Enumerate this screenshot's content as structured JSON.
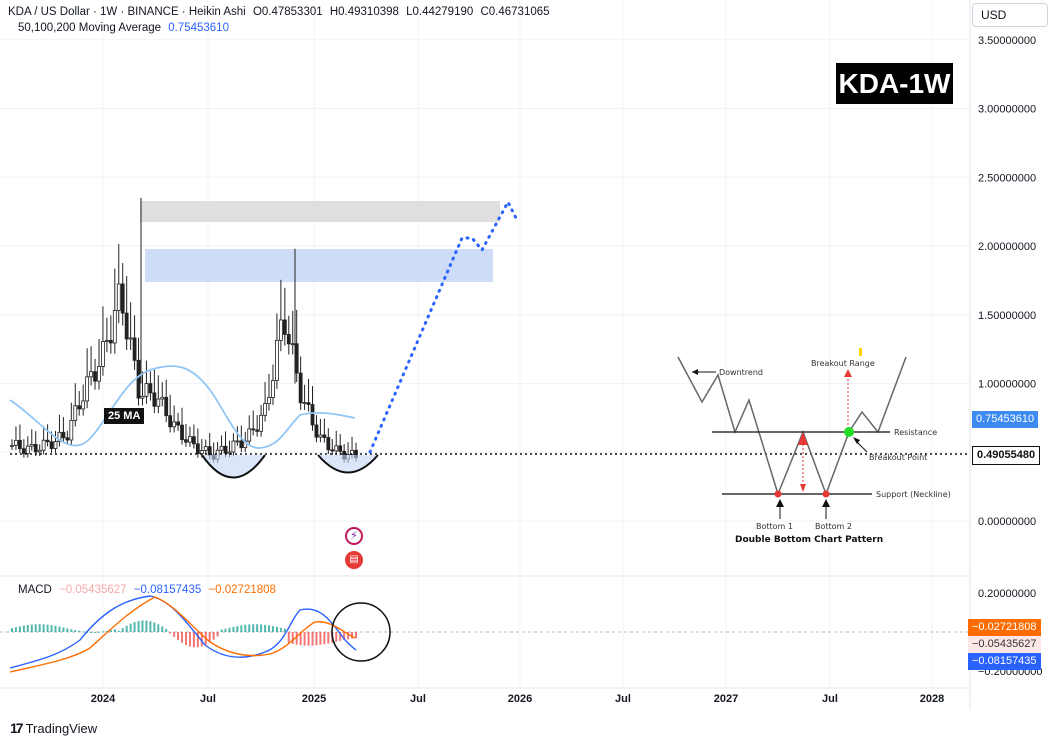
{
  "header": {
    "symbol": "KDA / US Dollar · 1W · BINANCE · Heikin Ashi",
    "open": "O0.47853301",
    "high": "H0.49310398",
    "low": "L0.44279190",
    "close": "C0.46731065",
    "ma_label": "50,100,200 Moving Average",
    "ma_value": "0.75453610"
  },
  "currency": "USD",
  "badge": "KDA-1W",
  "ma_tag": "25 MA",
  "macd": {
    "label": "MACD",
    "hist": "−0.05435627",
    "macd": "−0.08157435",
    "signal": "−0.02721808"
  },
  "price_axis": {
    "ticks": [
      "3.50000000",
      "3.00000000",
      "2.50000000",
      "2.00000000",
      "1.50000000",
      "1.00000000",
      "0.50000000",
      "0.00000000"
    ],
    "current_ma": "0.75453610",
    "current_price": "0.49055480"
  },
  "macd_axis": {
    "ticks": [
      "0.20000000",
      "−0.20000000"
    ],
    "signal_tag": "−0.02721808",
    "hist_tag": "−0.05435627",
    "macd_tag": "−0.08157435"
  },
  "time_axis": [
    "2024",
    "Jul",
    "2025",
    "Jul",
    "2026",
    "Jul",
    "2027",
    "Jul",
    "2028"
  ],
  "pattern": {
    "downtrend": "Downtrend",
    "breakout_range": "Breakout Range",
    "resistance": "Resistance",
    "breakout_point": "Breakout Point",
    "support": "Support (Neckline)",
    "bottom1": "Bottom 1",
    "bottom2": "Bottom 2",
    "title": "Double Bottom Chart Pattern"
  },
  "footer": {
    "brand": "TradingView",
    "logo": "17"
  },
  "colors": {
    "up": "#26a69a",
    "down": "#ef5350",
    "ma": "#90c6f5",
    "macd_line": "#2962ff",
    "signal_line": "#ff6d00",
    "hist_pos": "#26a69a",
    "hist_neg": "#ef5350",
    "zone_gray": "#d9d9d9",
    "zone_blue": "#c5d6f7"
  },
  "chart_data": {
    "type": "candlestick",
    "title": "KDA / US Dollar · 1W · BINANCE · Heikin Ashi",
    "ylim": [
      0,
      3.7
    ],
    "price_series": {
      "dates": [
        "2023-09",
        "2023-10",
        "2023-11",
        "2023-12",
        "2024-01",
        "2024-02",
        "2024-03",
        "2024-04",
        "2024-05",
        "2024-06",
        "2024-07",
        "2024-08",
        "2024-09",
        "2024-10",
        "2024-11",
        "2024-12",
        "2025-01",
        "2025-02",
        "2025-03",
        "2025-04"
      ],
      "close": [
        0.55,
        0.52,
        0.56,
        0.62,
        0.95,
        1.2,
        1.65,
        0.95,
        0.9,
        0.68,
        0.55,
        0.48,
        0.53,
        0.6,
        0.8,
        1.5,
        0.9,
        0.6,
        0.5,
        0.47
      ]
    },
    "ma_series": {
      "name": "25 MA",
      "dates": [
        "2023-09",
        "2023-11",
        "2024-01",
        "2024-03",
        "2024-05",
        "2024-07",
        "2024-09",
        "2024-11",
        "2025-01",
        "2025-03"
      ],
      "values": [
        0.88,
        0.6,
        0.52,
        0.95,
        1.1,
        0.92,
        0.6,
        0.58,
        0.8,
        0.76
      ]
    },
    "zones": [
      {
        "label": "gray",
        "y": [
          2.2,
          2.35
        ]
      },
      {
        "label": "blue",
        "y": [
          1.75,
          1.98
        ]
      }
    ],
    "projection": {
      "dates": [
        "2025-04",
        "2025-07",
        "2025-10",
        "2025-12"
      ],
      "values": [
        0.49,
        1.0,
        2.05,
        2.3
      ]
    },
    "reference_price": 0.4905548,
    "macd_series": {
      "dates": [
        "2023-09",
        "2023-12",
        "2024-02",
        "2024-03",
        "2024-05",
        "2024-07",
        "2024-09",
        "2024-11",
        "2024-12",
        "2025-02",
        "2025-04"
      ],
      "macd": [
        -0.07,
        -0.02,
        0.12,
        0.2,
        0.05,
        -0.12,
        -0.08,
        0.0,
        0.15,
        0.05,
        -0.08
      ],
      "signal": [
        -0.05,
        -0.04,
        0.06,
        0.15,
        0.1,
        -0.05,
        -0.1,
        -0.04,
        0.08,
        0.08,
        -0.03
      ]
    }
  }
}
